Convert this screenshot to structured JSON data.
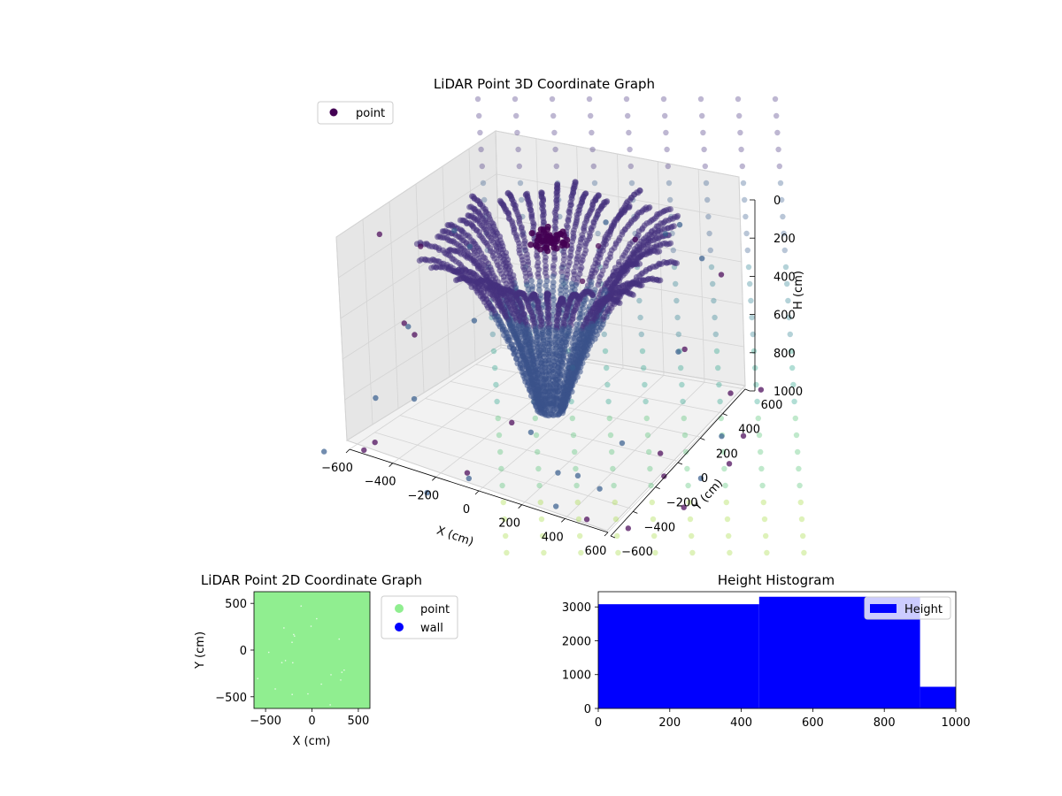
{
  "chart_data": [
    {
      "id": "lidar3d",
      "type": "scatter",
      "title": "LiDAR Point 3D Coordinate Graph",
      "xlabel": "X (cm)",
      "ylabel": "Y (cm)",
      "zlabel": "H (cm)",
      "xlim": [
        -600,
        600
      ],
      "ylim": [
        -600,
        600
      ],
      "zlim": [
        0,
        1000
      ],
      "z_inverted": true,
      "x_ticks": [
        "−600",
        "−400",
        "−200",
        "0",
        "200",
        "400",
        "600"
      ],
      "y_ticks": [
        "−600",
        "−400",
        "−200",
        "0",
        "200",
        "400",
        "600"
      ],
      "z_ticks": [
        "0",
        "200",
        "400",
        "600",
        "800",
        "1000"
      ],
      "grid": true,
      "legend": {
        "position": "upper-left",
        "entries": [
          {
            "label": "point",
            "color": "#440154"
          }
        ]
      },
      "colormap": "viridis"
    },
    {
      "id": "lidar2d",
      "type": "scatter",
      "title": "LiDAR Point 2D Coordinate Graph",
      "xlabel": "X (cm)",
      "ylabel": "Y (cm)",
      "xlim": [
        -625,
        625
      ],
      "ylim": [
        -625,
        625
      ],
      "x_ticks": [
        "−500",
        "0",
        "500"
      ],
      "y_ticks": [
        "−500",
        "0",
        "500"
      ],
      "legend": {
        "position": "outside-right",
        "entries": [
          {
            "label": "point",
            "color": "#90ee90"
          },
          {
            "label": "wall",
            "color": "#0000ff"
          }
        ]
      }
    },
    {
      "id": "height_hist",
      "type": "bar",
      "title": "Height Histogram",
      "xlabel": "",
      "ylabel": "",
      "xlim": [
        0,
        1000
      ],
      "ylim": [
        0,
        3450
      ],
      "x_ticks": [
        "0",
        "200",
        "400",
        "600",
        "800",
        "1000"
      ],
      "y_ticks": [
        "0",
        "1000",
        "2000",
        "3000"
      ],
      "color": "#0000ff",
      "bins": [
        {
          "from": 0,
          "to": 450,
          "count": 3080
        },
        {
          "from": 450,
          "to": 900,
          "count": 3300
        },
        {
          "from": 900,
          "to": 1000,
          "count": 640
        }
      ],
      "legend": {
        "position": "upper-right",
        "entries": [
          {
            "label": "Height",
            "color": "#0000ff"
          }
        ]
      }
    }
  ]
}
